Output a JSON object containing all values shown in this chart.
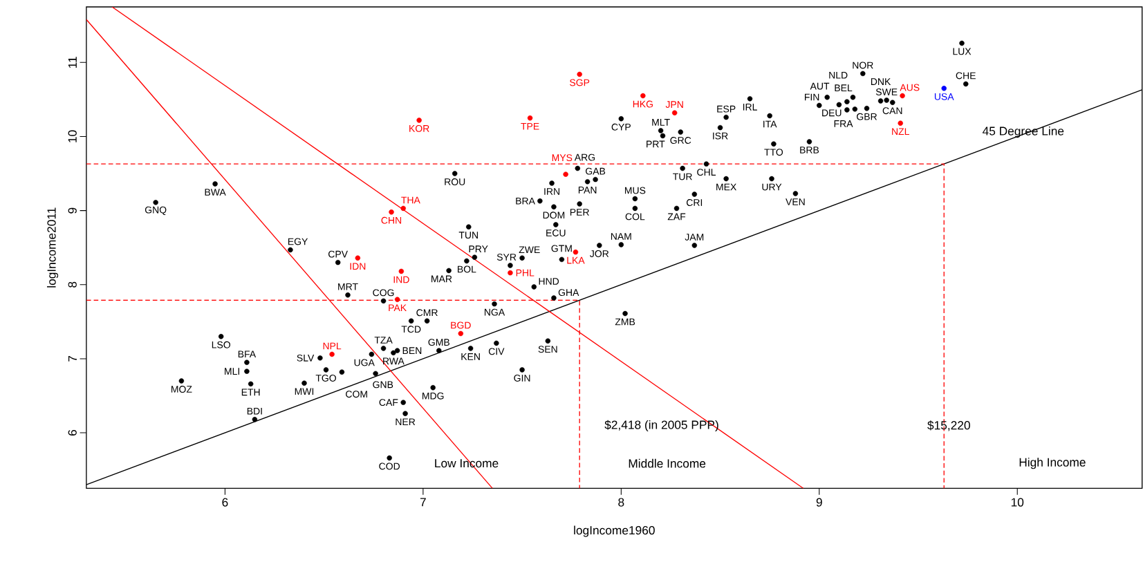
{
  "chart_data": {
    "type": "scatter",
    "xlabel": "logIncome1960",
    "ylabel": "logIncome2011",
    "xlim": [
      5.3,
      10.63
    ],
    "ylim": [
      5.25,
      11.75
    ],
    "xticks": [
      6,
      7,
      8,
      9,
      10
    ],
    "yticks": [
      6,
      7,
      8,
      9,
      10,
      11
    ],
    "series": [
      {
        "marker": "circle",
        "color": "#000000",
        "x": [
          5.65,
          5.95,
          6.33,
          6.57,
          6.62,
          6.8,
          6.94,
          7.02,
          5.98,
          6.11,
          6.11,
          6.13,
          5.78,
          6.15,
          6.48,
          6.51,
          6.59,
          6.4,
          6.74,
          6.76,
          6.8,
          6.85,
          6.87,
          7.08,
          7.05,
          6.9,
          6.91,
          6.83,
          7.16,
          7.78,
          7.65,
          7.59,
          7.66,
          7.67,
          7.79,
          7.83,
          7.87,
          7.23,
          8.07,
          8.07,
          8.31,
          8.43,
          8.53,
          8.37,
          8.28,
          8.76,
          8.88,
          8.77,
          8.37,
          7.89,
          8.0,
          7.7,
          7.5,
          7.44,
          7.13,
          7.22,
          7.26,
          7.56,
          7.66,
          7.36,
          8.02,
          7.24,
          7.37,
          7.63,
          7.5,
          8.0,
          8.2,
          8.21,
          8.3,
          8.53,
          8.5,
          8.65,
          8.75,
          8.95,
          9.22,
          9.0,
          9.04,
          9.1,
          9.14,
          9.17,
          9.14,
          9.18,
          9.24,
          9.31,
          9.34,
          9.37,
          9.72,
          9.74
        ],
        "values": [
          9.11,
          9.36,
          8.47,
          8.3,
          7.86,
          7.78,
          7.51,
          7.51,
          7.3,
          6.95,
          6.83,
          6.66,
          6.7,
          6.18,
          7.01,
          6.85,
          6.82,
          6.67,
          7.06,
          6.8,
          7.14,
          7.08,
          7.11,
          7.11,
          6.61,
          6.41,
          6.26,
          5.66,
          9.5,
          9.57,
          9.37,
          9.13,
          9.05,
          8.81,
          9.09,
          9.39,
          9.42,
          8.78,
          9.16,
          9.03,
          9.57,
          9.63,
          9.43,
          9.22,
          9.03,
          9.43,
          9.23,
          9.9,
          8.53,
          8.53,
          8.54,
          8.34,
          8.36,
          8.26,
          8.19,
          8.32,
          8.37,
          7.97,
          7.82,
          7.74,
          7.61,
          7.14,
          7.21,
          7.24,
          6.85,
          10.24,
          10.08,
          10.01,
          10.06,
          10.26,
          10.12,
          10.51,
          10.28,
          9.93,
          10.85,
          10.42,
          10.53,
          10.43,
          10.47,
          10.53,
          10.36,
          10.37,
          10.38,
          10.48,
          10.49,
          10.46,
          11.26,
          10.71
        ],
        "value_labels": [
          "GNQ",
          "BWA",
          "EGY",
          "CPV",
          "MRT",
          "COG",
          "TCD",
          "CMR",
          "LSO",
          "BFA",
          "MLI",
          "ETH",
          "MOZ",
          "BDI",
          "SLV",
          "TGO",
          "COM",
          "MWI",
          "UGA",
          "GNB",
          "TZA",
          "RWA",
          "BEN",
          "GMB",
          "MDG",
          "CAF",
          "NER",
          "COD",
          "ROU",
          "ARG",
          "IRN",
          "BRA",
          "DOM",
          "ECU",
          "PER",
          "PAN",
          "GAB",
          "TUN",
          "MUS",
          "COL",
          "TUR",
          "CHL",
          "MEX",
          "CRI",
          "ZAF",
          "URY",
          "VEN",
          "TTO",
          "JAM",
          "JOR",
          "NAM",
          "GTM",
          "ZWE",
          "SYR",
          "MAR",
          "BOL",
          "PRY",
          "HND",
          "GHA",
          "NGA",
          "ZMB",
          "KEN",
          "CIV",
          "SEN",
          "GIN",
          "CYP",
          "MLT",
          "PRT",
          "GRC",
          "ESP",
          "ISR",
          "IRL",
          "ITA",
          "BRB",
          "NOR",
          "FIN",
          "AUT",
          "DEU",
          "BEL",
          "NLD",
          "FRA",
          null,
          "GBR",
          "DNK",
          "SWE",
          "CAN",
          "LUX",
          "CHE"
        ]
      },
      {
        "marker": "circle",
        "color": "#ff0000",
        "x": [
          6.98,
          7.54,
          7.79,
          8.11,
          8.27,
          7.72,
          6.84,
          6.9,
          6.67,
          6.89,
          6.87,
          7.77,
          7.44,
          7.19,
          6.54,
          9.42,
          9.41
        ],
        "values": [
          10.22,
          10.25,
          10.84,
          10.55,
          10.32,
          9.49,
          8.98,
          9.03,
          8.36,
          8.18,
          7.8,
          8.44,
          8.16,
          7.34,
          7.06,
          10.55,
          10.18
        ],
        "value_labels": [
          "KOR",
          "TPE",
          "SGP",
          "HKG",
          "JPN",
          "MYS",
          "CHN",
          "THA",
          "IDN",
          "IND",
          "PAK",
          "LKA",
          "PHL",
          "BGD",
          "NPL",
          "AUS",
          "NZL"
        ]
      },
      {
        "marker": "circle",
        "color": "#0000ff",
        "x": [
          9.63
        ],
        "values": [
          10.65
        ],
        "value_labels": [
          "USA"
        ]
      },
      {
        "type": "line",
        "marker": "none",
        "color": "#000000",
        "x": [
          5.3,
          10.63
        ],
        "values": [
          5.3,
          10.63
        ]
      },
      {
        "type": "line",
        "marker": "none",
        "color": "#ff0000",
        "x": [
          5.3,
          7.35
        ],
        "values": [
          11.58,
          5.25
        ]
      },
      {
        "type": "line",
        "marker": "none",
        "color": "#ff0000",
        "x": [
          5.43,
          8.92
        ],
        "values": [
          11.75,
          5.25
        ]
      },
      {
        "type": "line",
        "marker": "none",
        "color": "#ff0000",
        "line_style": "dashed",
        "x": [
          5.3,
          9.63,
          9.63
        ],
        "values": [
          9.63,
          9.63,
          5.25
        ]
      },
      {
        "type": "line",
        "marker": "none",
        "color": "#ff0000",
        "line_style": "dashed",
        "x": [
          5.3,
          7.79,
          7.79
        ],
        "values": [
          7.79,
          7.79,
          5.25
        ]
      }
    ],
    "annotations": [
      "$2,418 (in 2005 PPP)",
      "$15,220",
      "Low Income",
      "Middle Income",
      "High Income",
      {
        "text": "45 Degree Line",
        "x": 10.03,
        "y": 10.06
      }
    ]
  }
}
